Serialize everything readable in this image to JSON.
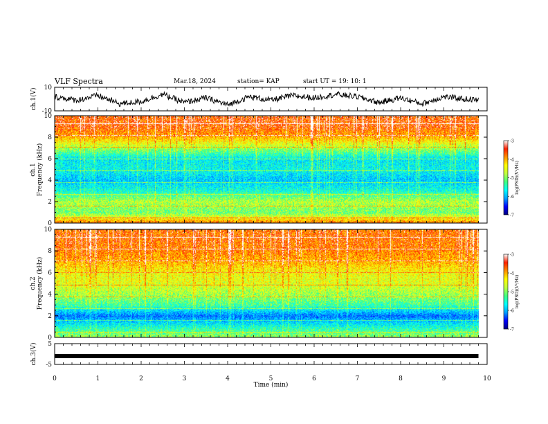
{
  "header": {
    "title": "VLF Spectra",
    "date": "Mar.18, 2024",
    "station": "station= KAP",
    "start": "start  UT =   19: 10: 1"
  },
  "colorbar": {
    "label": "log(PSD)(V²/Hz)",
    "ticks": [
      "-3",
      "-4",
      "-5",
      "-6",
      "-7"
    ],
    "colors": [
      "#000080",
      "#0000ff",
      "#00a0ff",
      "#00ffff",
      "#40ff80",
      "#c0ff40",
      "#ffff00",
      "#ff9000",
      "#ff2000",
      "#ffffff"
    ]
  },
  "chart_data": [
    {
      "type": "line",
      "panel": "ch1-waveform",
      "ylabel": "ch.1(V)",
      "ylim": [
        -10,
        10
      ],
      "yticks": [
        "10",
        "-10"
      ],
      "xlim": [
        0,
        9.8
      ],
      "series": [
        {
          "x": [
            0,
            0.5,
            1.0,
            1.5,
            2.0,
            2.5,
            3.0,
            3.5,
            4.0,
            4.5,
            5.0,
            5.5,
            6.0,
            6.5,
            7.0,
            7.5,
            8.0,
            8.5,
            9.0,
            9.5,
            9.8
          ],
          "values": [
            2,
            -1,
            3,
            -4,
            -2,
            4,
            -3,
            1,
            -5,
            2,
            -1,
            3,
            1,
            4,
            2,
            -3,
            1,
            -4,
            2,
            0,
            -1
          ]
        }
      ]
    },
    {
      "type": "heatmap",
      "panel": "ch1-spectrogram",
      "ylabel": "ch.1\nFrequency (kHz)",
      "ylim": [
        0,
        10
      ],
      "yticks": [
        "0",
        "2",
        "4",
        "6",
        "8",
        "10"
      ],
      "xlim": [
        0,
        10
      ],
      "value_label": "log(PSD)(V²/Hz)",
      "value_range": [
        -7,
        -3
      ],
      "freq_bands_kHz": [
        0,
        1,
        2,
        3,
        4,
        5,
        6,
        7,
        8,
        9,
        10
      ],
      "band_log_psd": [
        -3.5,
        -4.8,
        -4.5,
        -5.2,
        -5.6,
        -5.3,
        -5.4,
        -4.6,
        -3.8,
        -3.4
      ]
    },
    {
      "type": "heatmap",
      "panel": "ch2-spectrogram",
      "ylabel": "ch.2\nFrequency (kHz)",
      "ylim": [
        0,
        10
      ],
      "yticks": [
        "0",
        "2",
        "4",
        "6",
        "8",
        "10"
      ],
      "xlim": [
        0,
        10
      ],
      "value_label": "log(PSD)(V²/Hz)",
      "value_range": [
        -7,
        -3
      ],
      "freq_bands_kHz": [
        0,
        1,
        2,
        3,
        4,
        5,
        6,
        7,
        8,
        9,
        10
      ],
      "band_log_psd": [
        -4.6,
        -5.2,
        -6.0,
        -5.0,
        -4.6,
        -4.3,
        -4.2,
        -3.8,
        -3.6,
        -3.5
      ]
    },
    {
      "type": "line",
      "panel": "ch3-waveform",
      "ylabel": "ch.3(V)",
      "ylim": [
        -5,
        5
      ],
      "yticks": [
        "5",
        "-5"
      ],
      "xlim": [
        0,
        10
      ],
      "xlabel": "Time (min)",
      "xticks": [
        "0",
        "1",
        "2",
        "3",
        "4",
        "5",
        "6",
        "7",
        "8",
        "9",
        "10"
      ],
      "series": [
        {
          "x": [
            0,
            9.8
          ],
          "values": [
            -1,
            -1
          ]
        }
      ]
    }
  ]
}
